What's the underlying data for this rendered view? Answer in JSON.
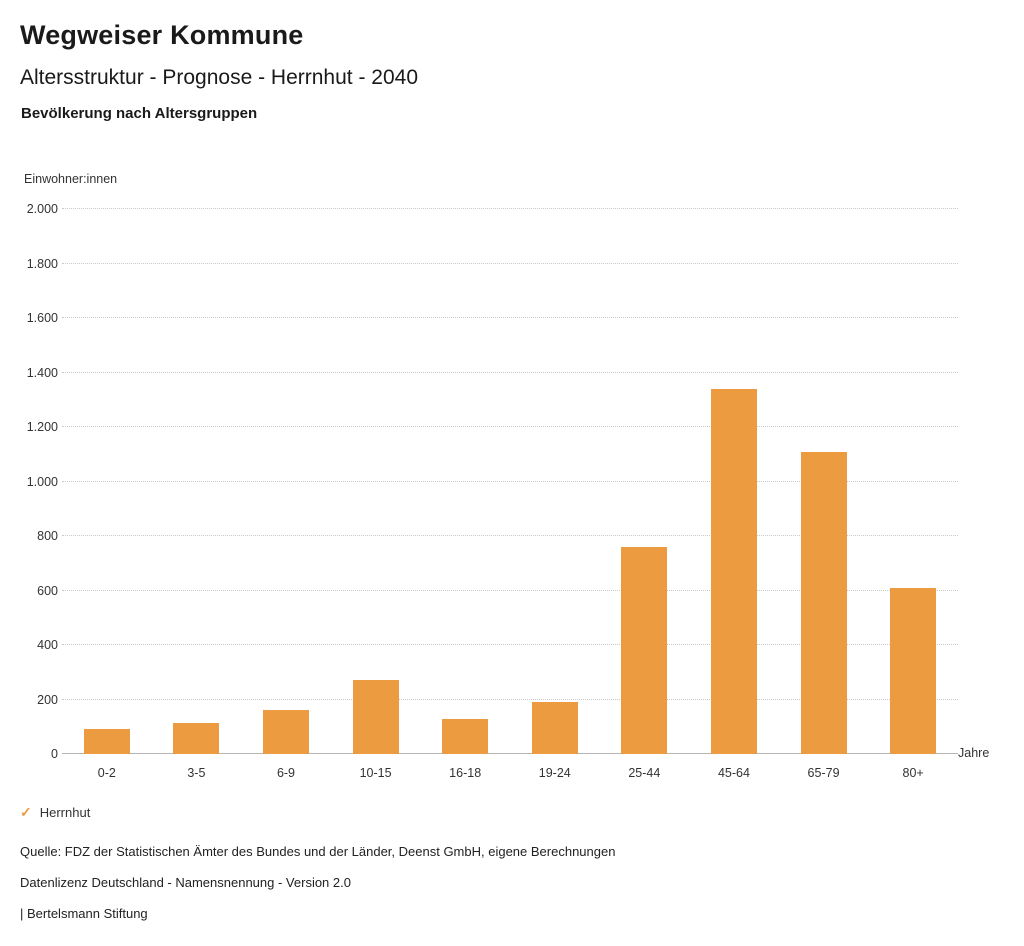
{
  "header": {
    "title": "Wegweiser Kommune",
    "subtitle": "Altersstruktur - Prognose - Herrnhut - 2040",
    "section_title": "Bevölkerung nach Altersgruppen"
  },
  "chart_data": {
    "type": "bar",
    "title": "Bevölkerung nach Altersgruppen",
    "ylabel": "Einwohner:innen",
    "xlabel": "Jahre",
    "categories": [
      "0-2",
      "3-5",
      "6-9",
      "10-15",
      "16-18",
      "19-24",
      "25-44",
      "45-64",
      "65-79",
      "80+"
    ],
    "series": [
      {
        "name": "Herrnhut",
        "values": [
          90,
          115,
          160,
          270,
          130,
          190,
          760,
          1340,
          1110,
          610
        ]
      }
    ],
    "ylim": [
      0,
      2000
    ],
    "ytick_interval": 200,
    "ytick_labels": [
      "0",
      "200",
      "400",
      "600",
      "800",
      "1.000",
      "1.200",
      "1.400",
      "1.600",
      "1.800",
      "2.000"
    ],
    "grid": "horizontal-dotted",
    "legend_position": "bottom-left",
    "bar_color": "#ED9B40"
  },
  "legend": {
    "check_icon": "✓",
    "label": "Herrnhut"
  },
  "footer": {
    "source": "Quelle: FDZ der Statistischen Ämter des Bundes und der Länder, Deenst GmbH, eigene Berechnungen",
    "license": "Datenlizenz Deutschland - Namensnennung - Version 2.0",
    "attribution": "| Bertelsmann Stiftung"
  }
}
